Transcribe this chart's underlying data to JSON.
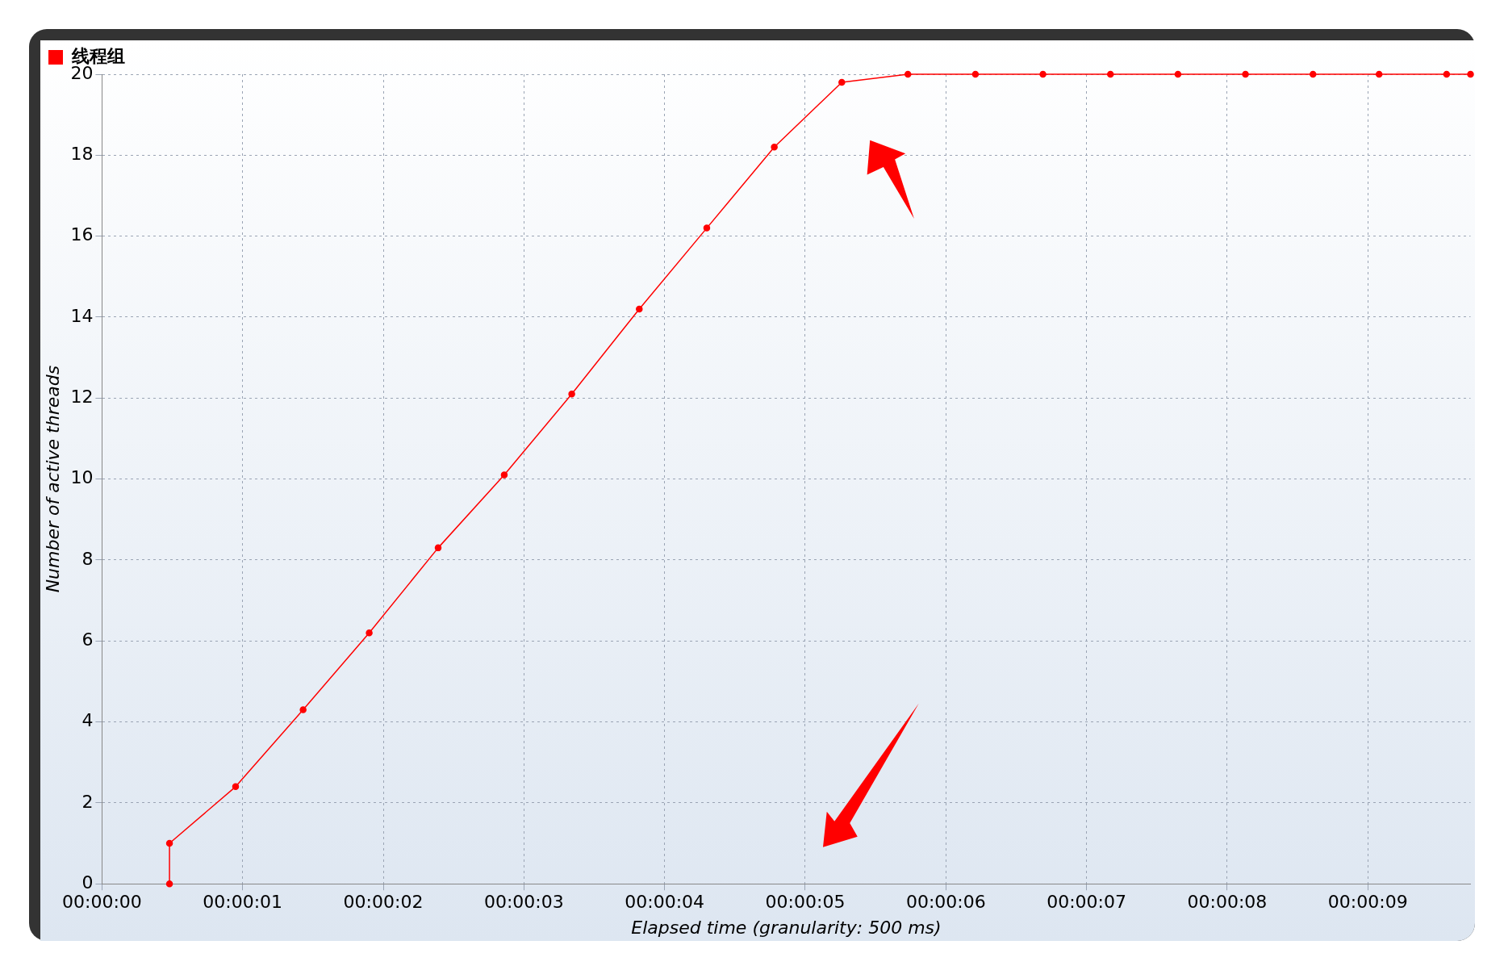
{
  "chart_data": {
    "type": "line",
    "xlabel": "Elapsed time (granularity: 500 ms)",
    "ylabel": "Number of active threads",
    "series": [
      {
        "name": "线程组",
        "color": "#ff0000",
        "x": [
          0.48,
          0.48,
          0.95,
          1.43,
          1.9,
          2.39,
          2.86,
          3.34,
          3.82,
          4.3,
          4.78,
          5.26,
          5.73,
          6.21,
          6.69,
          7.17,
          7.65,
          8.13,
          8.61,
          9.08,
          9.56,
          9.73
        ],
        "values": [
          0,
          1,
          2.4,
          4.3,
          6.2,
          8.3,
          10.1,
          12.1,
          14.2,
          16.2,
          18.2,
          19.8,
          20,
          20,
          20,
          20,
          20,
          20,
          20,
          20,
          20,
          20
        ]
      }
    ],
    "xlim": [
      0,
      9.73
    ],
    "ylim": [
      0,
      20
    ],
    "xticks": [
      {
        "value": 0,
        "label": "00:00:00"
      },
      {
        "value": 1,
        "label": "00:00:01"
      },
      {
        "value": 2,
        "label": "00:00:02"
      },
      {
        "value": 3,
        "label": "00:00:03"
      },
      {
        "value": 4,
        "label": "00:00:04"
      },
      {
        "value": 5,
        "label": "00:00:05"
      },
      {
        "value": 6,
        "label": "00:00:06"
      },
      {
        "value": 7,
        "label": "00:00:07"
      },
      {
        "value": 8,
        "label": "00:00:08"
      },
      {
        "value": 9,
        "label": "00:00:09"
      }
    ],
    "yticks": [
      0,
      2,
      4,
      6,
      8,
      10,
      12,
      14,
      16,
      18,
      20
    ],
    "grid": true,
    "legend": "top left",
    "marker": "circle",
    "line_style": "solid"
  }
}
